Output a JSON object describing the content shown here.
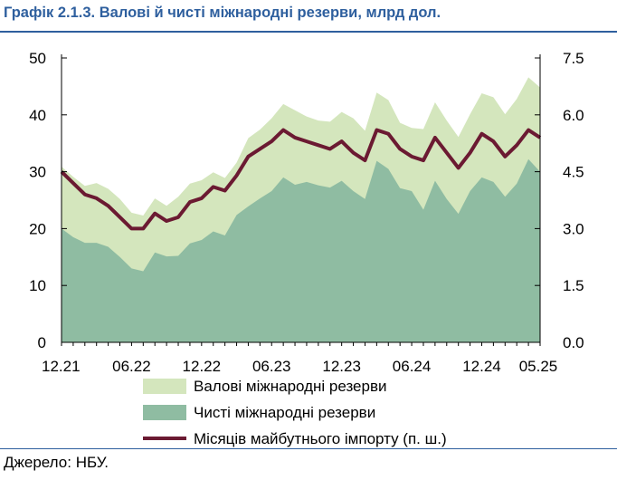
{
  "title_prefix": "Графік 2.1.3.",
  "title_rest": "Валові й чисті міжнародні резерви, млрд дол.",
  "source": "Джерело: НБУ.",
  "colors": {
    "title": "#2e5f9e",
    "gross": "#d4e6bd",
    "net": "#8fbca2",
    "months": "#6b1a32"
  },
  "chart_data": {
    "type": "area",
    "x_tick_labels": [
      "12.21",
      "06.22",
      "12.22",
      "06.23",
      "12.23",
      "06.24",
      "12.24",
      "05.25"
    ],
    "y_left": {
      "lim": [
        0,
        50
      ],
      "ticks": [
        "0",
        "10",
        "20",
        "30",
        "40",
        "50"
      ]
    },
    "y_right": {
      "lim": [
        0,
        7.5
      ],
      "ticks": [
        "0.0",
        "1.5",
        "3.0",
        "4.5",
        "6.0",
        "7.5"
      ]
    },
    "x": [
      "12.21",
      "01.22",
      "02.22",
      "03.22",
      "04.22",
      "05.22",
      "06.22",
      "07.22",
      "08.22",
      "09.22",
      "10.22",
      "11.22",
      "12.22",
      "01.23",
      "02.23",
      "03.23",
      "04.23",
      "05.23",
      "06.23",
      "07.23",
      "08.23",
      "09.23",
      "10.23",
      "11.23",
      "12.23",
      "01.24",
      "02.24",
      "03.24",
      "04.24",
      "05.24",
      "06.24",
      "07.24",
      "08.24",
      "09.24",
      "10.24",
      "11.24",
      "12.24",
      "01.25",
      "02.25",
      "03.25",
      "04.25",
      "05.25"
    ],
    "series": [
      {
        "name": "Валові міжнародні резерви",
        "axis": "left",
        "kind": "area",
        "values": [
          30.9,
          29.1,
          27.5,
          28.0,
          27.0,
          25.2,
          22.8,
          22.3,
          25.3,
          24.0,
          25.6,
          27.9,
          28.5,
          29.9,
          28.9,
          31.6,
          35.9,
          37.4,
          39.4,
          41.9,
          40.8,
          39.7,
          39.0,
          38.8,
          40.5,
          39.4,
          37.2,
          43.9,
          42.6,
          38.6,
          37.7,
          37.5,
          42.2,
          39.0,
          36.1,
          40.1,
          43.8,
          43.1,
          40.1,
          42.8,
          46.6,
          44.8
        ]
      },
      {
        "name": "Чисті міжнародні резерви",
        "axis": "left",
        "kind": "area",
        "values": [
          20.0,
          18.5,
          17.5,
          17.5,
          16.8,
          15.0,
          13.0,
          12.5,
          15.8,
          15.1,
          15.2,
          17.4,
          18.0,
          19.5,
          18.8,
          22.4,
          23.9,
          25.3,
          26.6,
          29.0,
          27.7,
          28.2,
          27.6,
          27.2,
          28.4,
          26.6,
          25.2,
          31.9,
          30.5,
          27.1,
          26.6,
          23.3,
          28.4,
          25.2,
          22.6,
          26.6,
          29.0,
          28.2,
          25.6,
          27.9,
          32.2,
          30.0
        ]
      },
      {
        "name": "Місяців майбутнього імпорту (п. ш.)",
        "axis": "right",
        "kind": "line",
        "values": [
          4.5,
          4.2,
          3.9,
          3.8,
          3.6,
          3.3,
          3.0,
          3.0,
          3.4,
          3.2,
          3.3,
          3.7,
          3.8,
          4.1,
          4.0,
          4.4,
          4.9,
          5.1,
          5.3,
          5.6,
          5.4,
          5.3,
          5.2,
          5.1,
          5.3,
          5.0,
          4.8,
          5.6,
          5.5,
          5.1,
          4.9,
          4.8,
          5.4,
          5.0,
          4.6,
          5.0,
          5.5,
          5.3,
          4.9,
          5.2,
          5.6,
          5.4
        ]
      }
    ],
    "legend": [
      "Валові міжнародні резерви",
      "Чисті міжнародні резерви",
      "Місяців майбутнього імпорту (п. ш.)"
    ],
    "legend_position": "bottom",
    "grid": false
  }
}
